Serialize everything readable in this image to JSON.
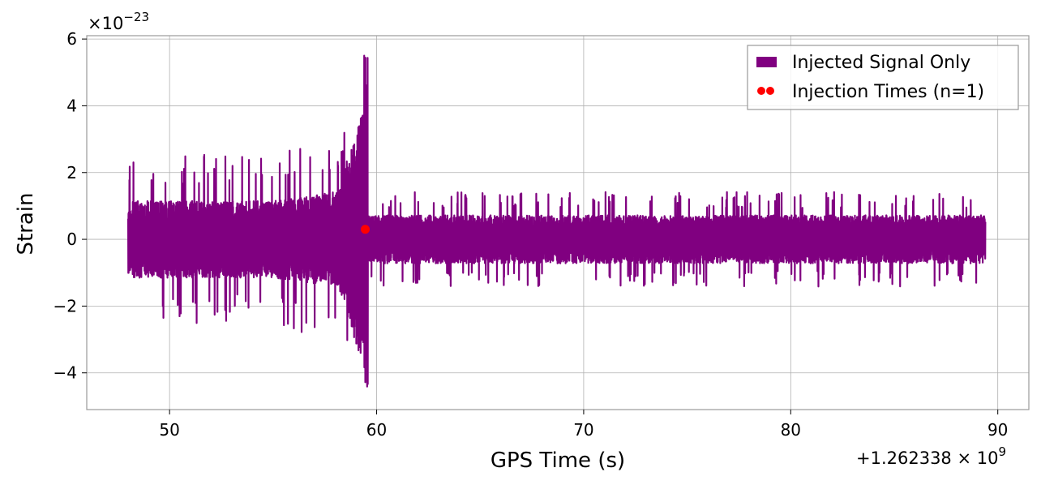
{
  "chart_data": {
    "type": "line",
    "xlabel": "GPS Time (s)",
    "ylabel": "Strain",
    "x_offset_label": "+1.262338 × 10",
    "x_offset_exponent": "9",
    "y_multiplier_label": "×10",
    "y_multiplier_exponent": "−23",
    "xlim": [
      46,
      91.5
    ],
    "ylim": [
      -5.1,
      6.1
    ],
    "x_ticks": [
      50,
      60,
      70,
      80,
      90
    ],
    "y_ticks": [
      -4,
      -2,
      0,
      2,
      4,
      6
    ],
    "x_tick_labels": [
      "50",
      "60",
      "70",
      "80",
      "90"
    ],
    "y_tick_labels": [
      "−4",
      "−2",
      "0",
      "2",
      "4",
      "6"
    ],
    "grid": true,
    "legend_position": "top-right",
    "series": [
      {
        "name": "Injected Signal Only",
        "kind": "strain-envelope",
        "color": "#800080",
        "x_start": 48.0,
        "x_end": 89.4,
        "envelope_before_injection_typical": 1.0,
        "envelope_before_injection_peaks": 2.2,
        "envelope_after_injection_typical": 0.6,
        "envelope_after_injection_peaks": 1.35,
        "chirp_peak_time": 59.4,
        "chirp_max": 5.55,
        "chirp_min": -4.6
      },
      {
        "name": "Injection Times (n=1)",
        "kind": "scatter",
        "color": "#ff0000",
        "points": [
          {
            "x": 59.45,
            "y": 0.3
          }
        ]
      }
    ]
  }
}
